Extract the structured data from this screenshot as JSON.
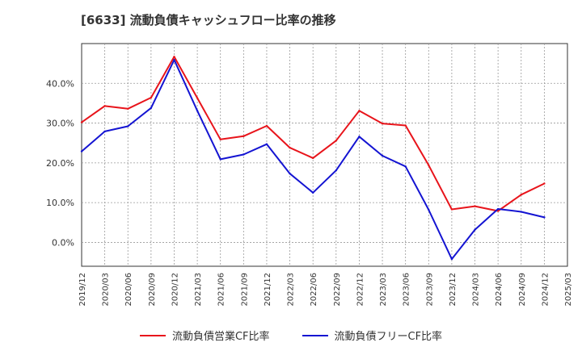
{
  "chart_data": {
    "type": "line",
    "title": "[6633]  流動負債キャッシュフロー比率の推移",
    "xlabel": "",
    "ylabel": "",
    "x": [
      "2019/12",
      "2020/03",
      "2020/06",
      "2020/09",
      "2020/12",
      "2021/03",
      "2021/06",
      "2021/09",
      "2021/12",
      "2022/03",
      "2022/06",
      "2022/09",
      "2022/12",
      "2023/03",
      "2023/06",
      "2023/09",
      "2023/12",
      "2024/03",
      "2024/06",
      "2024/09",
      "2024/12",
      "2025/03"
    ],
    "yticks": [
      "0.0%",
      "10.0%",
      "20.0%",
      "30.0%",
      "40.0%"
    ],
    "ylim": [
      -6,
      50
    ],
    "grid": true,
    "legend_position": "bottom",
    "series": [
      {
        "name": "流動負債営業CF比率",
        "color": "#e8141b",
        "values": [
          30.2,
          34.3,
          33.6,
          36.4,
          46.7,
          36.3,
          25.9,
          26.7,
          29.3,
          23.8,
          21.2,
          25.6,
          33.1,
          29.9,
          29.4,
          19.4,
          8.3,
          9.1,
          7.9,
          12.0,
          14.8,
          null
        ]
      },
      {
        "name": "流動負債フリーCF比率",
        "color": "#1414d2",
        "values": [
          22.9,
          27.9,
          29.2,
          33.8,
          45.9,
          33.1,
          20.9,
          22.1,
          24.7,
          17.3,
          12.5,
          18.1,
          26.6,
          21.8,
          19.1,
          8.2,
          -4.2,
          3.2,
          8.4,
          7.7,
          6.3,
          null
        ]
      }
    ]
  }
}
